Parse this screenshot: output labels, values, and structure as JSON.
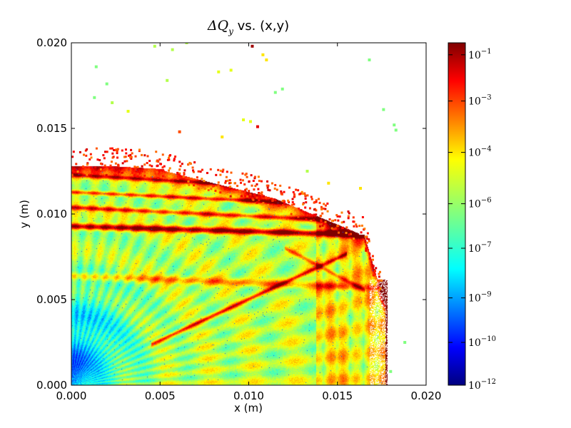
{
  "chart_data": {
    "type": "scatter",
    "title": "ΔQ",
    "title_subscript": "y",
    "title_suffix": " vs. (x,y)",
    "xlabel": "x (m)",
    "ylabel": "y (m)",
    "xlim": [
      0.0,
      0.02
    ],
    "ylim": [
      0.0,
      0.02
    ],
    "x_ticks": [
      "0.000",
      "0.005",
      "0.010",
      "0.015",
      "0.020"
    ],
    "y_ticks": [
      "0.000",
      "0.005",
      "0.010",
      "0.015",
      "0.020"
    ],
    "grid": false,
    "colormap": "jet",
    "colorbar": {
      "scale": "log",
      "range": [
        1e-12,
        0.3
      ],
      "tick_labels": [
        {
          "base": "10",
          "exp": "−1",
          "level": 0.035
        },
        {
          "base": "10",
          "exp": "−3",
          "level": 0.17
        },
        {
          "base": "10",
          "exp": "−4",
          "level": 0.32
        },
        {
          "base": "10",
          "exp": "−6",
          "level": 0.47
        },
        {
          "base": "10",
          "exp": "−7",
          "level": 0.6
        },
        {
          "base": "10",
          "exp": "−9",
          "level": 0.745
        },
        {
          "base": "10",
          "exp": "−10",
          "level": 0.875
        },
        {
          "base": "10",
          "exp": "−12",
          "level": 1.0
        }
      ]
    },
    "stray_points": [
      {
        "x": 0.0047,
        "y": 0.0198,
        "level": 0.55
      },
      {
        "x": 0.0057,
        "y": 0.0196,
        "level": 0.55
      },
      {
        "x": 0.0065,
        "y": 0.02,
        "level": 0.55
      },
      {
        "x": 0.0083,
        "y": 0.0183,
        "level": 0.6
      },
      {
        "x": 0.009,
        "y": 0.0184,
        "level": 0.6
      },
      {
        "x": 0.0102,
        "y": 0.0198,
        "level": 0.97
      },
      {
        "x": 0.0108,
        "y": 0.0193,
        "level": 0.65
      },
      {
        "x": 0.011,
        "y": 0.019,
        "level": 0.65
      },
      {
        "x": 0.0014,
        "y": 0.0186,
        "level": 0.5
      },
      {
        "x": 0.002,
        "y": 0.0176,
        "level": 0.5
      },
      {
        "x": 0.0013,
        "y": 0.0168,
        "level": 0.5
      },
      {
        "x": 0.0023,
        "y": 0.0165,
        "level": 0.55
      },
      {
        "x": 0.0054,
        "y": 0.0178,
        "level": 0.55
      },
      {
        "x": 0.0115,
        "y": 0.0171,
        "level": 0.5
      },
      {
        "x": 0.0119,
        "y": 0.0173,
        "level": 0.5
      },
      {
        "x": 0.0168,
        "y": 0.019,
        "level": 0.5
      },
      {
        "x": 0.0176,
        "y": 0.0161,
        "level": 0.5
      },
      {
        "x": 0.0182,
        "y": 0.0152,
        "level": 0.5
      },
      {
        "x": 0.0183,
        "y": 0.0149,
        "level": 0.5
      },
      {
        "x": 0.0097,
        "y": 0.0155,
        "level": 0.6
      },
      {
        "x": 0.0101,
        "y": 0.0154,
        "level": 0.6
      },
      {
        "x": 0.0032,
        "y": 0.016,
        "level": 0.6
      },
      {
        "x": 0.0133,
        "y": 0.0125,
        "level": 0.55
      },
      {
        "x": 0.0145,
        "y": 0.0118,
        "level": 0.65
      },
      {
        "x": 0.0163,
        "y": 0.0115,
        "level": 0.65
      },
      {
        "x": 0.0188,
        "y": 0.0025,
        "level": 0.5
      },
      {
        "x": 0.018,
        "y": 0.0008,
        "level": 0.5
      },
      {
        "x": 0.0105,
        "y": 0.0151,
        "level": 0.9
      },
      {
        "x": 0.0085,
        "y": 0.0145,
        "level": 0.65
      },
      {
        "x": 0.0061,
        "y": 0.0148,
        "level": 0.8
      }
    ]
  }
}
